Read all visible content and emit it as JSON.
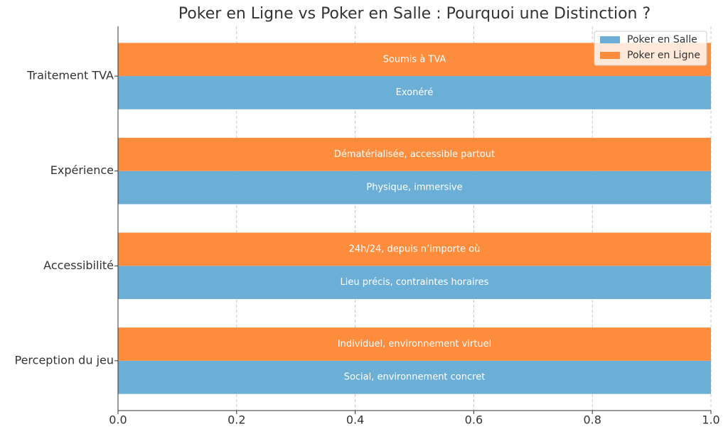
{
  "chart_data": {
    "type": "barh",
    "title": "Poker en Ligne vs Poker en Salle : Pourquoi une Distinction ?",
    "categories": [
      "Traitement TVA",
      "Expérience",
      "Accessibilité",
      "Perception du jeu"
    ],
    "series": [
      {
        "name": "Poker en Salle",
        "color": "#6baed6",
        "values": [
          1,
          1,
          1,
          1
        ],
        "bar_labels": [
          "Exonéré",
          "Physique, immersive",
          "Lieu précis, contraintes horaires",
          "Social, environnement concret"
        ]
      },
      {
        "name": "Poker en Ligne",
        "color": "#fd8d3c",
        "values": [
          1,
          1,
          1,
          1
        ],
        "bar_labels": [
          "Soumis à TVA",
          "Dématérialisée, accessible partout",
          "24h/24, depuis n’importe où",
          "Individuel, environnement virtuel"
        ]
      }
    ],
    "xlim": [
      0,
      1
    ],
    "xticks": [
      {
        "value": 0,
        "label": "0.0"
      },
      0.2,
      0.4,
      0.6,
      0.8,
      {
        "value": 1,
        "label": "1.0"
      }
    ],
    "grid": true,
    "legend": "upper-right"
  }
}
